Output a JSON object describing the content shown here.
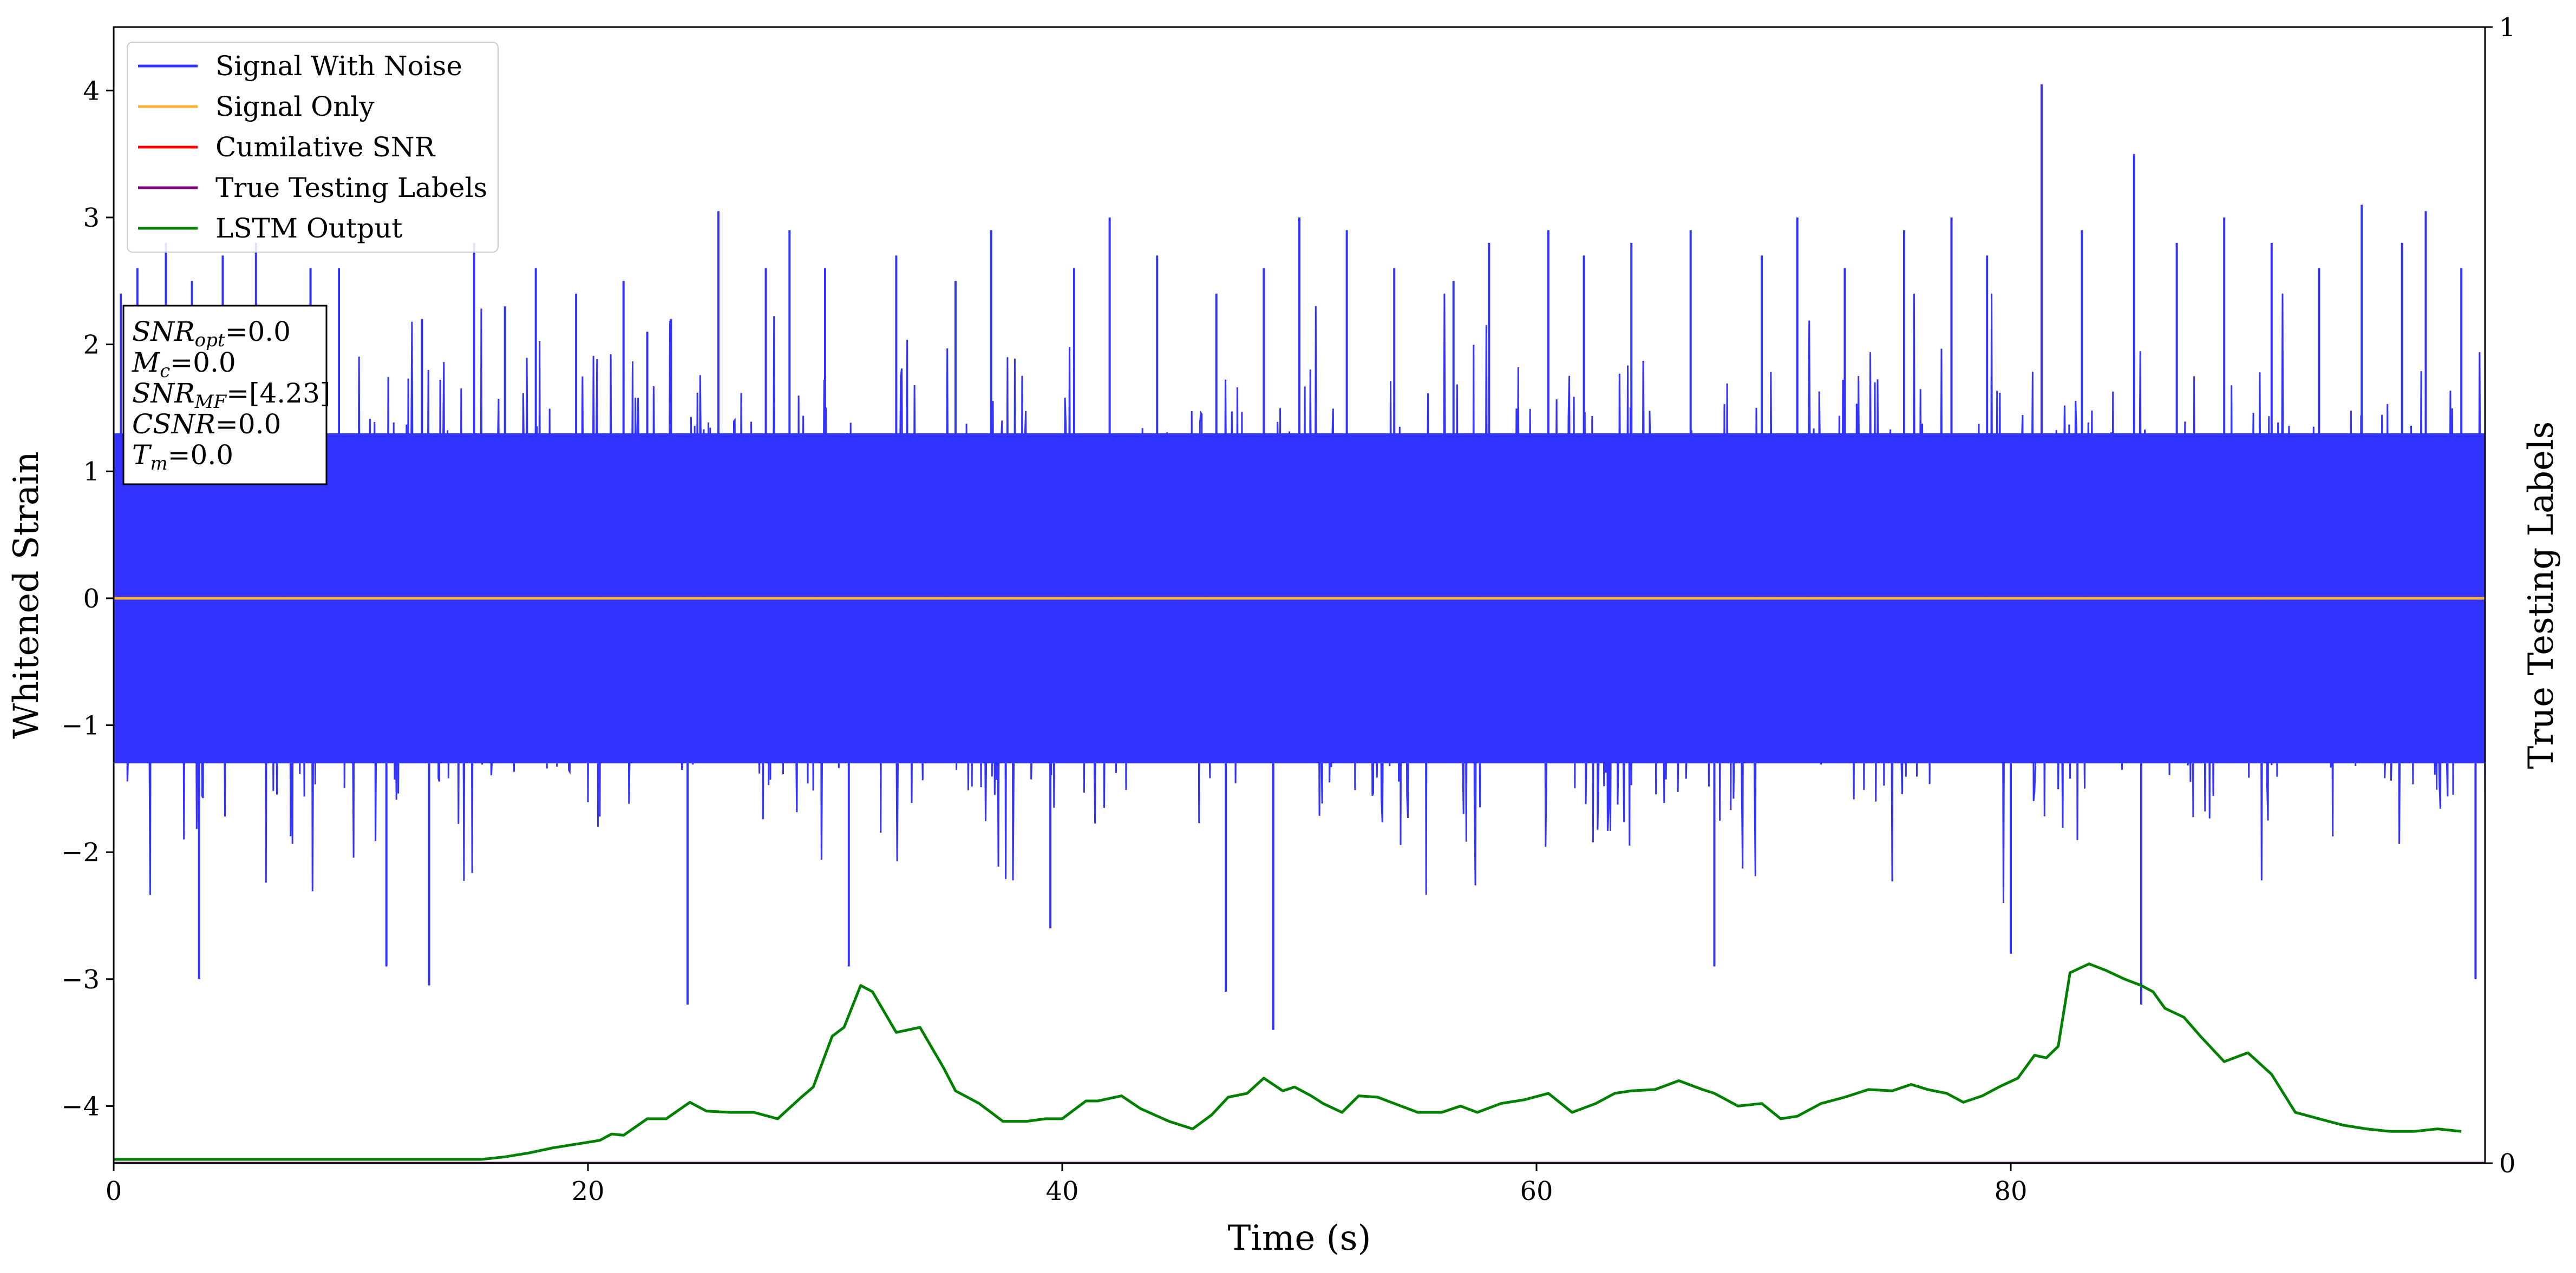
{
  "chart_data": {
    "type": "line",
    "xlabel": "Time (s)",
    "ylabel": "Whitened Strain",
    "ylabel_right": "True Testing Labels",
    "xlim": [
      0,
      100
    ],
    "ylim": [
      -4.45,
      4.5
    ],
    "ylim_right": [
      0,
      1
    ],
    "x_ticks": [
      0,
      20,
      40,
      60,
      80
    ],
    "y_ticks": [
      -4,
      -3,
      -2,
      -1,
      0,
      1,
      2,
      3,
      4
    ],
    "y_right_ticks": [
      0,
      1
    ],
    "legend_placement": "upper-left",
    "legend": [
      {
        "label": "Signal With Noise",
        "color": "#3333ff"
      },
      {
        "label": "Signal Only",
        "color": "#ffb02e"
      },
      {
        "label": "Cumilative SNR",
        "color": "#ff0000"
      },
      {
        "label": "True Testing Labels",
        "color": "#800080"
      },
      {
        "label": "LSTM Output",
        "color": "#008000"
      }
    ],
    "info_box": {
      "lines": [
        {
          "sym": "SNR",
          "sub": "opt",
          "val": "=0.0"
        },
        {
          "sym": "M",
          "sub": "c",
          "val": "=0.0"
        },
        {
          "sym": "SNR",
          "sub": "MF",
          "val": "=[4.23]"
        },
        {
          "sym": "CSNR",
          "sub": "",
          "val": "=0.0"
        },
        {
          "sym": "T",
          "sub": "m",
          "val": "=0.0"
        }
      ]
    },
    "series": [
      {
        "name": "Signal With Noise",
        "axis": "left",
        "color": "#3333ff",
        "kind": "dense_noise",
        "band_low": -1.3,
        "band_high": 1.3,
        "spikes": [
          {
            "x": 0.3,
            "y": 2.4
          },
          {
            "x": 1.0,
            "y": 2.6
          },
          {
            "x": 2.2,
            "y": 2.8
          },
          {
            "x": 3.3,
            "y": 2.5
          },
          {
            "x": 3.6,
            "y": -3.0
          },
          {
            "x": 4.6,
            "y": 2.7
          },
          {
            "x": 6.0,
            "y": 2.8
          },
          {
            "x": 8.3,
            "y": 2.6
          },
          {
            "x": 9.5,
            "y": 2.6
          },
          {
            "x": 11.5,
            "y": -2.9
          },
          {
            "x": 13.0,
            "y": 2.2
          },
          {
            "x": 13.3,
            "y": -3.05
          },
          {
            "x": 15.2,
            "y": 2.8
          },
          {
            "x": 16.5,
            "y": 2.3
          },
          {
            "x": 17.8,
            "y": 2.6
          },
          {
            "x": 19.5,
            "y": 2.4
          },
          {
            "x": 21.5,
            "y": 2.5
          },
          {
            "x": 22.5,
            "y": 2.1
          },
          {
            "x": 23.5,
            "y": 2.2
          },
          {
            "x": 24.2,
            "y": -3.2
          },
          {
            "x": 25.5,
            "y": 3.05
          },
          {
            "x": 27.5,
            "y": 2.6
          },
          {
            "x": 28.5,
            "y": 2.9
          },
          {
            "x": 30.0,
            "y": 2.6
          },
          {
            "x": 31.0,
            "y": -2.9
          },
          {
            "x": 33.0,
            "y": 2.7
          },
          {
            "x": 35.5,
            "y": 2.5
          },
          {
            "x": 37.0,
            "y": 2.9
          },
          {
            "x": 39.5,
            "y": -2.6
          },
          {
            "x": 40.5,
            "y": 2.6
          },
          {
            "x": 42.0,
            "y": 3.0
          },
          {
            "x": 44.0,
            "y": 2.7
          },
          {
            "x": 46.5,
            "y": 2.4
          },
          {
            "x": 46.9,
            "y": -3.1
          },
          {
            "x": 48.5,
            "y": 2.6
          },
          {
            "x": 48.9,
            "y": -3.4
          },
          {
            "x": 50.0,
            "y": 3.0
          },
          {
            "x": 52.0,
            "y": 2.9
          },
          {
            "x": 54.0,
            "y": 2.6
          },
          {
            "x": 56.5,
            "y": 2.5
          },
          {
            "x": 58.0,
            "y": 2.8
          },
          {
            "x": 60.5,
            "y": 2.9
          },
          {
            "x": 62.0,
            "y": 2.7
          },
          {
            "x": 64.0,
            "y": 2.8
          },
          {
            "x": 66.5,
            "y": 2.9
          },
          {
            "x": 67.5,
            "y": -2.9
          },
          {
            "x": 69.5,
            "y": 2.7
          },
          {
            "x": 71.0,
            "y": 3.0
          },
          {
            "x": 73.0,
            "y": 2.6
          },
          {
            "x": 75.5,
            "y": 2.9
          },
          {
            "x": 77.5,
            "y": 3.0
          },
          {
            "x": 79.0,
            "y": 2.7
          },
          {
            "x": 80.0,
            "y": -2.8
          },
          {
            "x": 81.3,
            "y": 4.05
          },
          {
            "x": 83.0,
            "y": 2.9
          },
          {
            "x": 85.2,
            "y": 3.5
          },
          {
            "x": 85.5,
            "y": -3.2
          },
          {
            "x": 87.0,
            "y": 2.8
          },
          {
            "x": 89.0,
            "y": 3.0
          },
          {
            "x": 91.0,
            "y": 2.8
          },
          {
            "x": 93.0,
            "y": 2.6
          },
          {
            "x": 94.8,
            "y": 3.1
          },
          {
            "x": 96.5,
            "y": 2.8
          },
          {
            "x": 97.5,
            "y": 3.05
          },
          {
            "x": 99.0,
            "y": 2.6
          },
          {
            "x": 99.6,
            "y": -3.0
          }
        ]
      },
      {
        "name": "Signal Only",
        "axis": "left",
        "color": "#ffb02e",
        "x": [
          0,
          100
        ],
        "y": [
          0,
          0
        ]
      },
      {
        "name": "True Testing Labels",
        "axis": "right",
        "color": "#800080",
        "x": [
          0,
          100
        ],
        "y": [
          0,
          0
        ]
      },
      {
        "name": "LSTM Output",
        "axis": "left",
        "color": "#008000",
        "x": [
          0,
          15.5,
          16.5,
          17.5,
          18.5,
          19.5,
          20.5,
          21.0,
          21.5,
          22.5,
          23.3,
          24.3,
          25.0,
          26.0,
          27.0,
          28.0,
          29.0,
          29.5,
          30.3,
          30.8,
          31.5,
          32.0,
          33.0,
          34.0,
          35.0,
          35.5,
          36.5,
          37.5,
          38.5,
          39.3,
          40.0,
          41.0,
          41.5,
          42.5,
          43.3,
          44.5,
          45.5,
          46.3,
          47.0,
          47.8,
          48.5,
          49.3,
          49.8,
          50.5,
          51.0,
          51.8,
          52.5,
          53.3,
          54.0,
          55.0,
          56.0,
          56.8,
          57.5,
          58.5,
          59.5,
          60.5,
          61.5,
          62.5,
          63.3,
          64.0,
          65.0,
          66.0,
          67.0,
          67.5,
          68.5,
          69.5,
          70.3,
          71.0,
          72.0,
          73.0,
          74.0,
          75.0,
          75.8,
          76.5,
          77.3,
          78.0,
          78.8,
          79.5,
          80.3,
          81.0,
          81.5,
          82.0,
          82.5,
          83.3,
          84.0,
          84.8,
          85.5,
          86.0,
          86.5,
          87.3,
          88.0,
          89.0,
          90.0,
          91.0,
          92.0,
          93.0,
          94.0,
          95.0,
          96.0,
          97.0,
          98.0,
          99.0
        ],
        "y": [
          -4.42,
          -4.42,
          -4.4,
          -4.37,
          -4.33,
          -4.3,
          -4.27,
          -4.22,
          -4.23,
          -4.1,
          -4.1,
          -3.97,
          -4.04,
          -4.05,
          -4.05,
          -4.1,
          -3.93,
          -3.85,
          -3.45,
          -3.38,
          -3.05,
          -3.1,
          -3.42,
          -3.38,
          -3.7,
          -3.88,
          -3.98,
          -4.12,
          -4.12,
          -4.1,
          -4.1,
          -3.96,
          -3.96,
          -3.92,
          -4.02,
          -4.12,
          -4.18,
          -4.07,
          -3.93,
          -3.9,
          -3.78,
          -3.88,
          -3.85,
          -3.92,
          -3.98,
          -4.05,
          -3.92,
          -3.93,
          -3.98,
          -4.05,
          -4.05,
          -4.0,
          -4.05,
          -3.98,
          -3.95,
          -3.9,
          -4.05,
          -3.98,
          -3.9,
          -3.88,
          -3.87,
          -3.8,
          -3.87,
          -3.9,
          -4.0,
          -3.98,
          -4.1,
          -4.08,
          -3.98,
          -3.93,
          -3.87,
          -3.88,
          -3.83,
          -3.87,
          -3.9,
          -3.97,
          -3.92,
          -3.85,
          -3.78,
          -3.6,
          -3.62,
          -3.53,
          -2.95,
          -2.88,
          -2.93,
          -3.0,
          -3.05,
          -3.1,
          -3.23,
          -3.3,
          -3.45,
          -3.65,
          -3.58,
          -3.75,
          -4.05,
          -4.1,
          -4.15,
          -4.18,
          -4.2,
          -4.2,
          -4.18,
          -4.2
        ]
      }
    ]
  }
}
